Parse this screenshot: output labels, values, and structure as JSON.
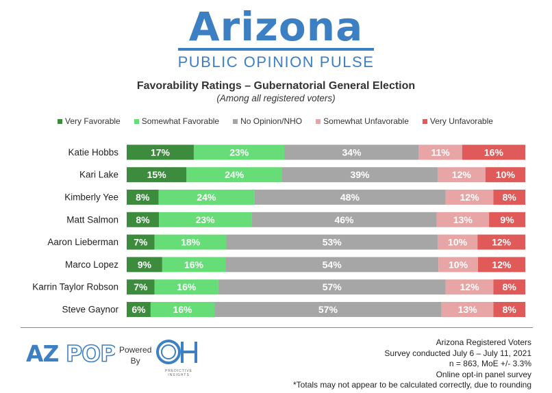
{
  "brand": {
    "name": "Arizona",
    "subtitle": "PUBLIC OPINION PULSE"
  },
  "chart_data": {
    "type": "bar",
    "orientation": "horizontal",
    "stacked": true,
    "title": "Favorability Ratings  – Gubernatorial General Election",
    "subtitle": "(Among all registered voters)",
    "legend_position": "top",
    "categories": [
      "Katie Hobbs",
      "Kari Lake",
      "Kimberly Yee",
      "Matt Salmon",
      "Aaron Lieberman",
      "Marco Lopez",
      "Karrin Taylor Robson",
      "Steve Gaynor"
    ],
    "series": [
      {
        "name": "Very Favorable",
        "color": "#3d8b3d",
        "values": [
          17,
          15,
          8,
          8,
          7,
          9,
          7,
          6
        ]
      },
      {
        "name": "Somewhat Favorable",
        "color": "#66dd77",
        "values": [
          23,
          24,
          24,
          23,
          18,
          16,
          16,
          16
        ]
      },
      {
        "name": "No Opinion/NHO",
        "color": "#a6a6a6",
        "values": [
          34,
          39,
          48,
          46,
          53,
          54,
          57,
          57
        ]
      },
      {
        "name": "Somewhat Unfavorable",
        "color": "#e8a5a5",
        "values": [
          11,
          12,
          12,
          13,
          10,
          10,
          12,
          13
        ]
      },
      {
        "name": "Very Unfavorable",
        "color": "#e05a5a",
        "values": [
          16,
          10,
          8,
          9,
          12,
          12,
          8,
          8
        ]
      }
    ],
    "value_suffix": "%"
  },
  "footer": {
    "logo_text": "AZPOP",
    "powered_by": [
      "Powered",
      "By"
    ],
    "partner_logo_text": "OH",
    "partner_sub": "PREDICTIVE INSIGHTS",
    "notes": [
      "Arizona Registered Voters",
      "Survey conducted July 6 – July 11, 2021",
      "n = 863, MoE +/- 3.3%",
      "Online opt-in panel survey",
      "*Totals may not appear to be calculated correctly, due to rounding"
    ]
  }
}
